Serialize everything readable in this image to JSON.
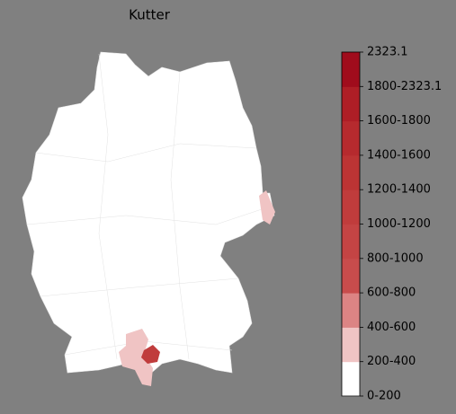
{
  "title": "Kutter",
  "legend": {
    "labels": [
      "0-200",
      "200-400",
      "400-600",
      "600-800",
      "800-1000",
      "1000-1200",
      "1200-1400",
      "1400-1600",
      "1600-1800",
      "1800-2323.1",
      "2323.1"
    ],
    "colors": [
      "#ffffff",
      "#f0c4c4",
      "#dc8484",
      "#c84c4c",
      "#c44444",
      "#c03c3c",
      "#bc3434",
      "#b62a2e",
      "#ae1e26",
      "#a00c1c"
    ]
  }
}
